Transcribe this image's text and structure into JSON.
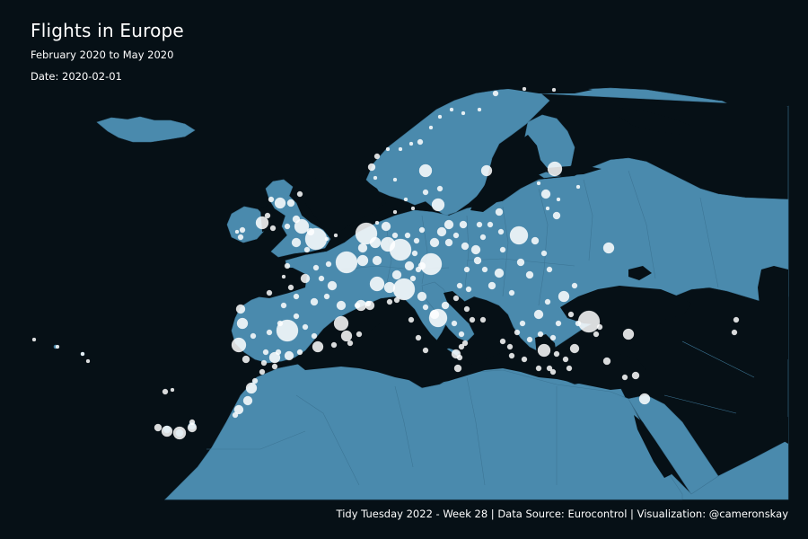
{
  "header": {
    "title": "Flights in Europe",
    "subtitle": "February 2020 to May 2020",
    "date_label": "Date: 2020-02-01"
  },
  "caption": "Tidy Tuesday 2022 - Week 28 | Data Source: Eurocontrol | Visualization: @cameronskay",
  "colors": {
    "background": "#061016",
    "land": "#4a8aad",
    "border": "#3d7696",
    "airport_bubble": "#ffffff"
  },
  "map": {
    "region": "Europe",
    "encoding": "bubble size = number of flights per airport",
    "bubble_opacity": 0.85
  }
}
